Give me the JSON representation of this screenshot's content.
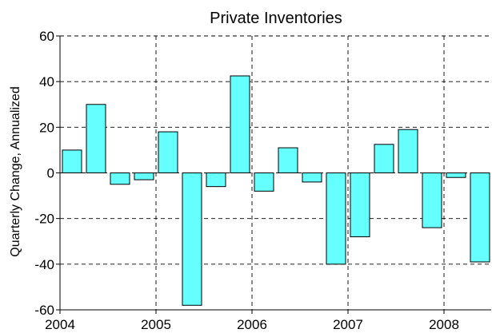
{
  "chart_data": {
    "type": "bar",
    "title": "Private Inventories",
    "ylabel": "Quarterly Change, Annualized",
    "xlabel": "",
    "ylim": [
      -60,
      60
    ],
    "yticks": [
      -60,
      -40,
      -20,
      0,
      20,
      40,
      60
    ],
    "year_labels": [
      "2004",
      "2005",
      "2006",
      "2007",
      "2008"
    ],
    "grid": true,
    "colors": {
      "bar_fill": "#66ffff",
      "bar_stroke": "#000000"
    },
    "categories": [
      "2004 Q1",
      "2004 Q2",
      "2004 Q3",
      "2004 Q4",
      "2005 Q1",
      "2005 Q2",
      "2005 Q3",
      "2005 Q4",
      "2006 Q1",
      "2006 Q2",
      "2006 Q3",
      "2006 Q4",
      "2007 Q1",
      "2007 Q2",
      "2007 Q3",
      "2007 Q4",
      "2008 Q1",
      "2008 Q2"
    ],
    "values": [
      10,
      30,
      -5,
      -3,
      18,
      -58,
      -6,
      42.5,
      -8,
      11,
      -4,
      -40,
      -28,
      12.5,
      19,
      -24,
      -2,
      -39
    ]
  }
}
